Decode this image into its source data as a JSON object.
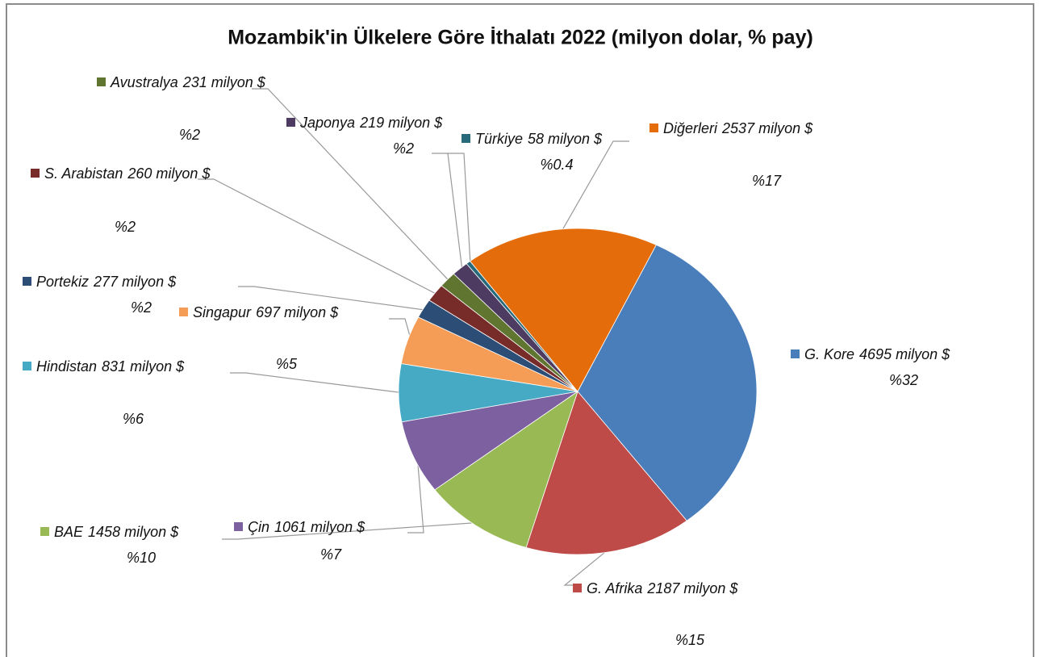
{
  "chart_data": {
    "type": "pie",
    "title": "Mozambik'in Ülkelere Göre İthalatı 2022 (milyon dolar, % pay)",
    "categories": [
      "G. Kore",
      "G. Afrika",
      "BAE",
      "Çin",
      "Hindistan",
      "Singapur",
      "Portekiz",
      "S. Arabistan",
      "Avustralya",
      "Japonya",
      "Türkiye",
      "Diğerleri"
    ],
    "values": [
      4695,
      2187,
      1458,
      1061,
      831,
      697,
      277,
      260,
      231,
      219,
      58,
      2537
    ],
    "value_labels": [
      "4695 milyon $",
      "2187 milyon $",
      "1458 milyon $",
      "1061 milyon $",
      "831 milyon $",
      "697 milyon $",
      "277 milyon $",
      "260 milyon $",
      "231 milyon $",
      "219 milyon $",
      "58 milyon $",
      "2537 milyon $"
    ],
    "percent_labels": [
      "%32",
      "%15",
      "%10",
      "%7",
      "%6",
      "%5",
      "%2",
      "%2",
      "%2",
      "%2",
      "%0.4",
      "%17"
    ],
    "colors": [
      "#4a7ebb",
      "#be4b48",
      "#98b954",
      "#7d60a0",
      "#46aac5",
      "#f59d56",
      "#2c4d75",
      "#772c2a",
      "#5f7530",
      "#4d3b62",
      "#276a7c",
      "#e46c0a"
    ]
  }
}
